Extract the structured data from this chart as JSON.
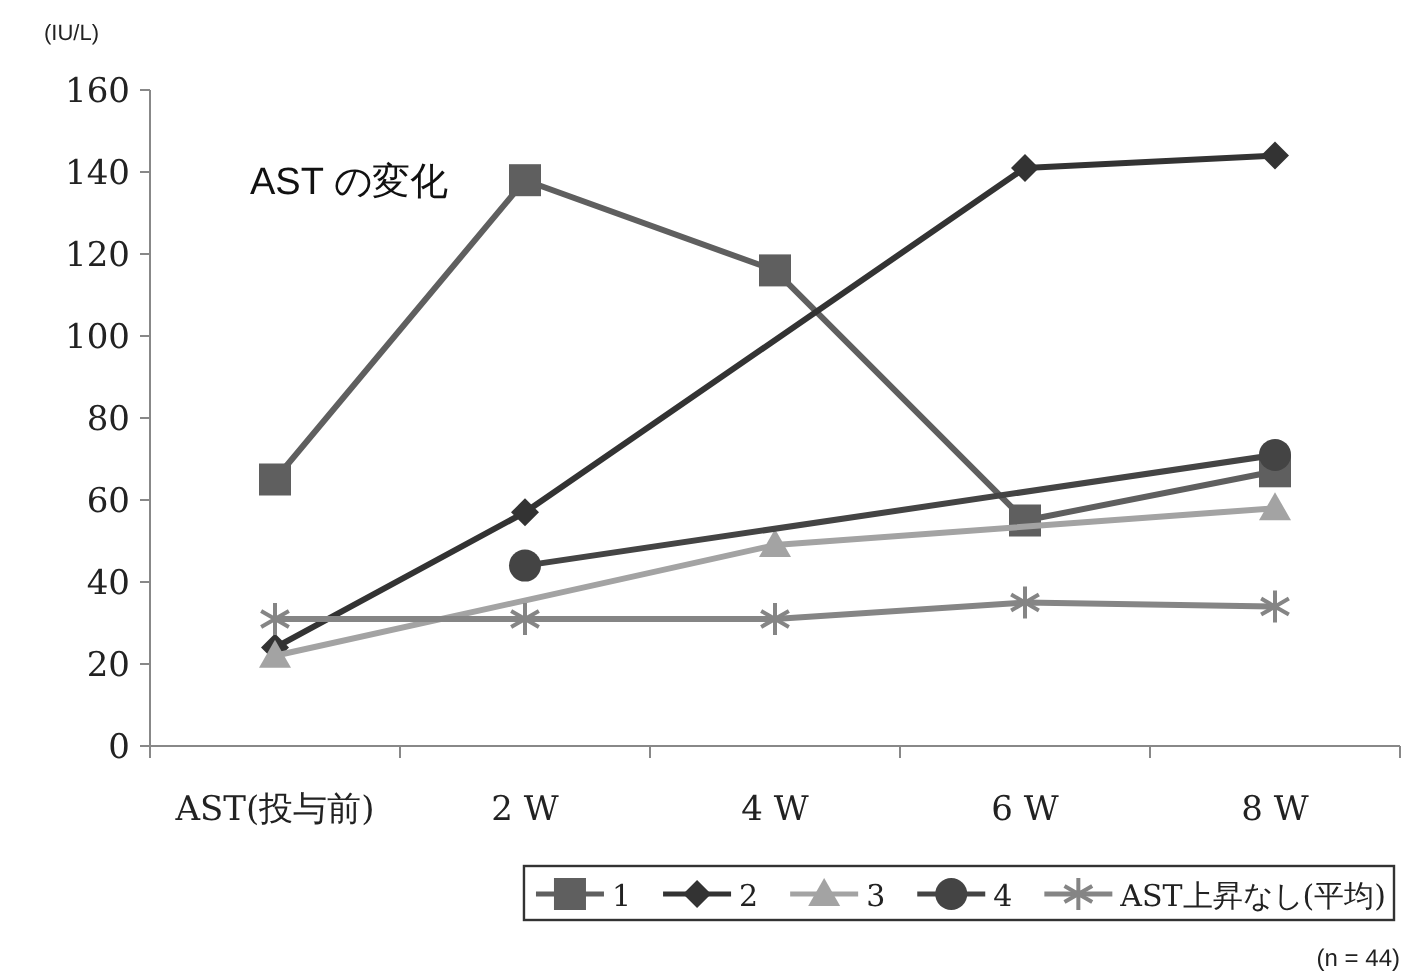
{
  "chart_data": {
    "type": "line",
    "title": "AST の変化",
    "ylabel": "(IU/L)",
    "categories": [
      "AST(投与前)",
      "2 W",
      "4 W",
      "6 W",
      "8 W"
    ],
    "ylim": [
      0,
      160
    ],
    "yticks": [
      0,
      20,
      40,
      60,
      80,
      100,
      120,
      140,
      160
    ],
    "grid": false,
    "legend": "bottom right",
    "series": [
      {
        "name": "1",
        "color": "#5f5f5f",
        "marker": "square",
        "values": [
          65,
          138,
          116,
          55,
          67
        ]
      },
      {
        "name": "2",
        "color": "#333333",
        "marker": "diamond",
        "values": [
          24,
          57,
          null,
          141,
          144
        ]
      },
      {
        "name": "3",
        "color": "#a3a3a3",
        "marker": "triangle",
        "values": [
          22,
          null,
          49,
          null,
          58
        ]
      },
      {
        "name": "4",
        "color": "#444444",
        "marker": "circle",
        "values": [
          null,
          44,
          null,
          null,
          71
        ]
      },
      {
        "name": "AST上昇なし(平均)",
        "color": "#858585",
        "marker": "cross",
        "values": [
          31,
          31,
          31,
          35,
          34
        ]
      }
    ],
    "annotations": [
      "(n = 44)"
    ]
  }
}
